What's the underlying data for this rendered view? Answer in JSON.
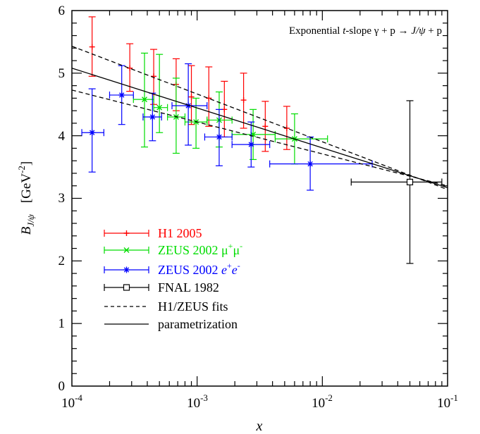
{
  "chart_data": {
    "type": "scatter",
    "title": "Exponential t-slope γ + p → J/ψ + p",
    "title_parts": {
      "a": "Exponential ",
      "t": "t",
      "b": "-slope γ + p → ",
      "jpsi": "J/ψ",
      "c": " + p"
    },
    "xlabel": "x",
    "ylabel_parts": {
      "B": "B",
      "sub": "J/ψ",
      "unit_open": "[GeV",
      "unit_exp": "-2",
      "unit_close": "]"
    },
    "x_scale": "log",
    "xlim": [
      0.0001,
      0.1
    ],
    "ylim": [
      0,
      6
    ],
    "x_tick_labels": [
      {
        "value": 0.0001,
        "base": "10",
        "exp": "-4"
      },
      {
        "value": 0.001,
        "base": "10",
        "exp": "-3"
      },
      {
        "value": 0.01,
        "base": "10",
        "exp": "-2"
      },
      {
        "value": 0.1,
        "base": "10",
        "exp": "-1"
      }
    ],
    "y_tick_labels": [
      "0",
      "1",
      "2",
      "3",
      "4",
      "5",
      "6"
    ],
    "grid": false,
    "legend_position": "left",
    "colors": {
      "h1": "#ff0000",
      "zeus_mu": "#00dd00",
      "zeus_e": "#0000ff",
      "fnal": "#000000"
    },
    "series": [
      {
        "name": "H1 2005",
        "legend": {
          "text": "H1 2005"
        },
        "color": "#ff0000",
        "marker": "plus",
        "points": [
          {
            "x": 0.000145,
            "y": 5.42,
            "yerr": [
              4.95,
              5.9
            ]
          },
          {
            "x": 0.00029,
            "y": 5.08,
            "yerr": [
              4.71,
              5.47
            ]
          },
          {
            "x": 0.00045,
            "y": 4.95,
            "yerr": [
              4.5,
              5.38
            ]
          },
          {
            "x": 0.00068,
            "y": 4.82,
            "yerr": [
              4.4,
              5.23
            ]
          },
          {
            "x": 0.0009,
            "y": 4.62,
            "yerr": [
              4.18,
              5.12
            ]
          },
          {
            "x": 0.00124,
            "y": 4.6,
            "yerr": [
              4.15,
              5.1
            ]
          },
          {
            "x": 0.00165,
            "y": 4.42,
            "yerr": [
              3.98,
              4.87
            ]
          },
          {
            "x": 0.00235,
            "y": 4.57,
            "yerr": [
              4.12,
              5.0
            ]
          },
          {
            "x": 0.0035,
            "y": 4.15,
            "yerr": [
              3.75,
              4.55
            ]
          },
          {
            "x": 0.0052,
            "y": 4.12,
            "yerr": [
              3.78,
              4.47
            ]
          }
        ]
      },
      {
        "name": "ZEUS 2002 μ+μ-",
        "legend": {
          "text": "ZEUS 2002 μ",
          "sup": "+",
          "mid": "μ",
          "sup2": "-"
        },
        "color": "#00dd00",
        "marker": "x",
        "points": [
          {
            "x": 0.00038,
            "y": 4.58,
            "xerr": [
              0.00031,
              0.00045
            ],
            "yerr": [
              3.82,
              5.32
            ]
          },
          {
            "x": 0.0005,
            "y": 4.45,
            "xerr": [
              0.00045,
              0.00058
            ],
            "yerr": [
              4.05,
              5.3
            ]
          },
          {
            "x": 0.00068,
            "y": 4.3,
            "xerr": [
              0.00058,
              0.0008
            ],
            "yerr": [
              3.72,
              4.92
            ]
          },
          {
            "x": 0.00098,
            "y": 4.22,
            "xerr": [
              0.0008,
              0.0012
            ],
            "yerr": [
              3.8,
              4.6
            ]
          },
          {
            "x": 0.0015,
            "y": 4.25,
            "xerr": [
              0.0012,
              0.0019
            ],
            "yerr": [
              3.82,
              4.7
            ]
          },
          {
            "x": 0.0028,
            "y": 4.02,
            "xerr": [
              0.0019,
              0.0042
            ],
            "yerr": [
              3.62,
              4.42
            ]
          },
          {
            "x": 0.006,
            "y": 3.95,
            "xerr": [
              0.0042,
              0.011
            ],
            "yerr": [
              3.55,
              4.35
            ]
          }
        ]
      },
      {
        "name": "ZEUS 2002 e+e-",
        "legend": {
          "text": "ZEUS 2002 ",
          "e1": "e",
          "sup": "+",
          "e2": "e",
          "sup2": "-"
        },
        "color": "#0000ff",
        "marker": "star",
        "points": [
          {
            "x": 0.000145,
            "y": 4.05,
            "xerr": [
              0.00012,
              0.00018
            ],
            "yerr": [
              3.42,
              4.75
            ]
          },
          {
            "x": 0.00025,
            "y": 4.65,
            "xerr": [
              0.0002,
              0.00031
            ],
            "yerr": [
              4.18,
              5.12
            ]
          },
          {
            "x": 0.00044,
            "y": 4.3,
            "xerr": [
              0.00037,
              0.00052
            ],
            "yerr": [
              3.92,
              4.68
            ]
          },
          {
            "x": 0.00085,
            "y": 4.48,
            "xerr": [
              0.00063,
              0.0012
            ],
            "yerr": [
              3.85,
              5.15
            ]
          },
          {
            "x": 0.0015,
            "y": 3.98,
            "xerr": [
              0.00115,
              0.0019
            ],
            "yerr": [
              3.52,
              4.42
            ]
          },
          {
            "x": 0.0027,
            "y": 3.86,
            "xerr": [
              0.0019,
              0.0038
            ],
            "yerr": [
              3.5,
              4.22
            ]
          },
          {
            "x": 0.008,
            "y": 3.55,
            "xerr": [
              0.0038,
              0.025
            ],
            "yerr": [
              3.13,
              3.98
            ]
          }
        ]
      },
      {
        "name": "FNAL 1982",
        "legend": {
          "text": "FNAL 1982"
        },
        "color": "#000000",
        "marker": "square",
        "points": [
          {
            "x": 0.05,
            "y": 3.26,
            "xerr": [
              0.017,
              0.09
            ],
            "yerr": [
              1.96,
              4.56
            ]
          }
        ]
      }
    ],
    "lines": [
      {
        "name": "H1/ZEUS fits",
        "legend": {
          "text": "H1/ZEUS fits"
        },
        "style": "dashed",
        "x": [
          0.0001,
          0.1
        ],
        "y": [
          5.43,
          3.14
        ]
      },
      {
        "name": "H1/ZEUS fits",
        "style": "dashed",
        "x": [
          0.0001,
          0.1
        ],
        "y": [
          4.73,
          3.2
        ]
      },
      {
        "name": "parametrization",
        "legend": {
          "text": "parametrization"
        },
        "style": "solid",
        "x": [
          0.0001,
          0.1
        ],
        "y": [
          5.08,
          3.17
        ]
      }
    ]
  }
}
